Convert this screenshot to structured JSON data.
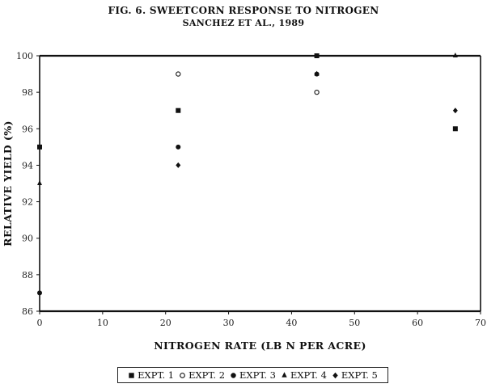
{
  "chart_data": {
    "type": "scatter",
    "title": "FIG. 6. SWEETCORN RESPONSE TO NITROGEN",
    "subtitle": "SANCHEZ ET AL., 1989",
    "xlabel": "NITROGEN RATE (LB N PER ACRE)",
    "ylabel": "RELATIVE YIELD (%)",
    "xlim": [
      0,
      70
    ],
    "ylim": [
      86,
      100
    ],
    "xticks": [
      0,
      10,
      20,
      30,
      40,
      50,
      60,
      70
    ],
    "yticks": [
      86,
      88,
      90,
      92,
      94,
      96,
      98,
      100
    ],
    "grid": false,
    "legend_position": "bottom",
    "series": [
      {
        "name": "EXPT. 1",
        "marker": "square",
        "x": [
          0,
          22,
          44,
          66
        ],
        "y": [
          95,
          97,
          100,
          96
        ]
      },
      {
        "name": "EXPT. 2",
        "marker": "circle-open",
        "x": [
          22,
          44
        ],
        "y": [
          99,
          98
        ]
      },
      {
        "name": "EXPT. 3",
        "marker": "circle",
        "x": [
          0,
          22,
          44
        ],
        "y": [
          87,
          95,
          99
        ]
      },
      {
        "name": "EXPT. 4",
        "marker": "triangle",
        "x": [
          0,
          44,
          66
        ],
        "y": [
          93,
          99,
          100
        ]
      },
      {
        "name": "EXPT. 5",
        "marker": "diamond",
        "x": [
          22,
          66
        ],
        "y": [
          94,
          97
        ]
      }
    ]
  }
}
